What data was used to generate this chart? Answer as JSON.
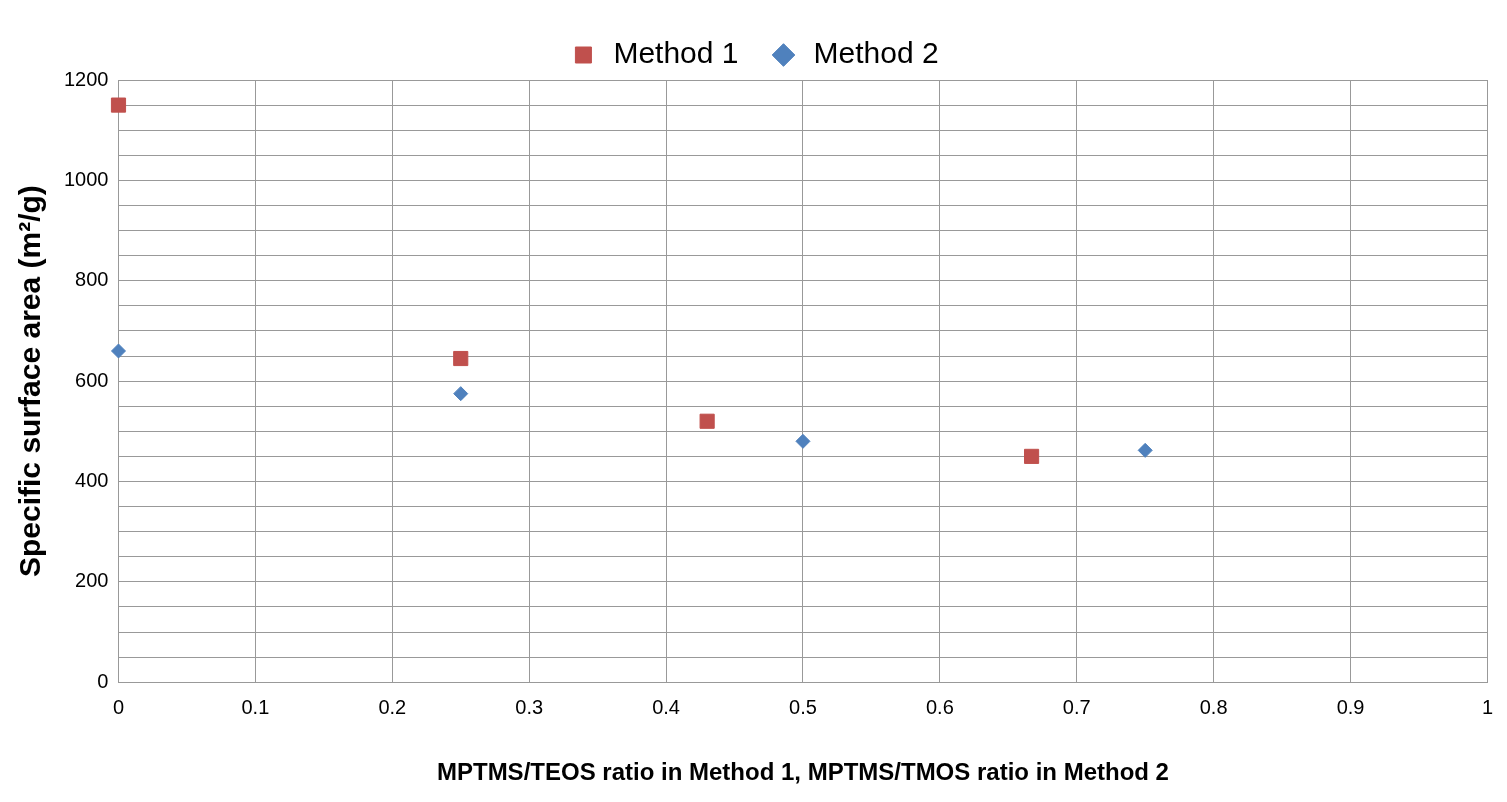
{
  "chart_data": {
    "type": "scatter",
    "xlabel": "MPTMS/TEOS ratio in Method 1, MPTMS/TMOS ratio in Method 2",
    "ylabel": "Specific surface area (m²/g)",
    "series": [
      {
        "name": "Method 1",
        "color": "#c0504d",
        "marker": "square",
        "x": [
          0,
          0.25,
          0.43,
          0.667
        ],
        "values": [
          1150,
          645,
          520,
          450
        ]
      },
      {
        "name": "Method 2",
        "color": "#4f81bd",
        "marker": "diamond",
        "x": [
          0,
          0.25,
          0.5,
          0.75
        ],
        "values": [
          660,
          575,
          480,
          462
        ]
      }
    ],
    "xlim": [
      0,
      1
    ],
    "xticks": [
      0,
      0.1,
      0.2,
      0.3,
      0.4,
      0.5,
      0.6,
      0.7,
      0.8,
      0.9,
      1
    ],
    "ylim": [
      0,
      1200
    ],
    "yticks": [
      0,
      {
        "value": 50,
        "label": null
      },
      {
        "value": 100,
        "label": null
      },
      {
        "value": 150,
        "label": null
      },
      200,
      {
        "value": 250,
        "label": null
      },
      {
        "value": 300,
        "label": null
      },
      {
        "value": 350,
        "label": null
      },
      400,
      {
        "value": 450,
        "label": null
      },
      {
        "value": 500,
        "label": null
      },
      {
        "value": 550,
        "label": null
      },
      600,
      {
        "value": 650,
        "label": null
      },
      {
        "value": 700,
        "label": null
      },
      {
        "value": 750,
        "label": null
      },
      800,
      {
        "value": 850,
        "label": null
      },
      {
        "value": 900,
        "label": null
      },
      {
        "value": 950,
        "label": null
      },
      1000,
      {
        "value": 1050,
        "label": null
      },
      {
        "value": 1100,
        "label": null
      },
      {
        "value": 1150,
        "label": null
      },
      1200
    ],
    "grid": true,
    "legend": "top"
  }
}
